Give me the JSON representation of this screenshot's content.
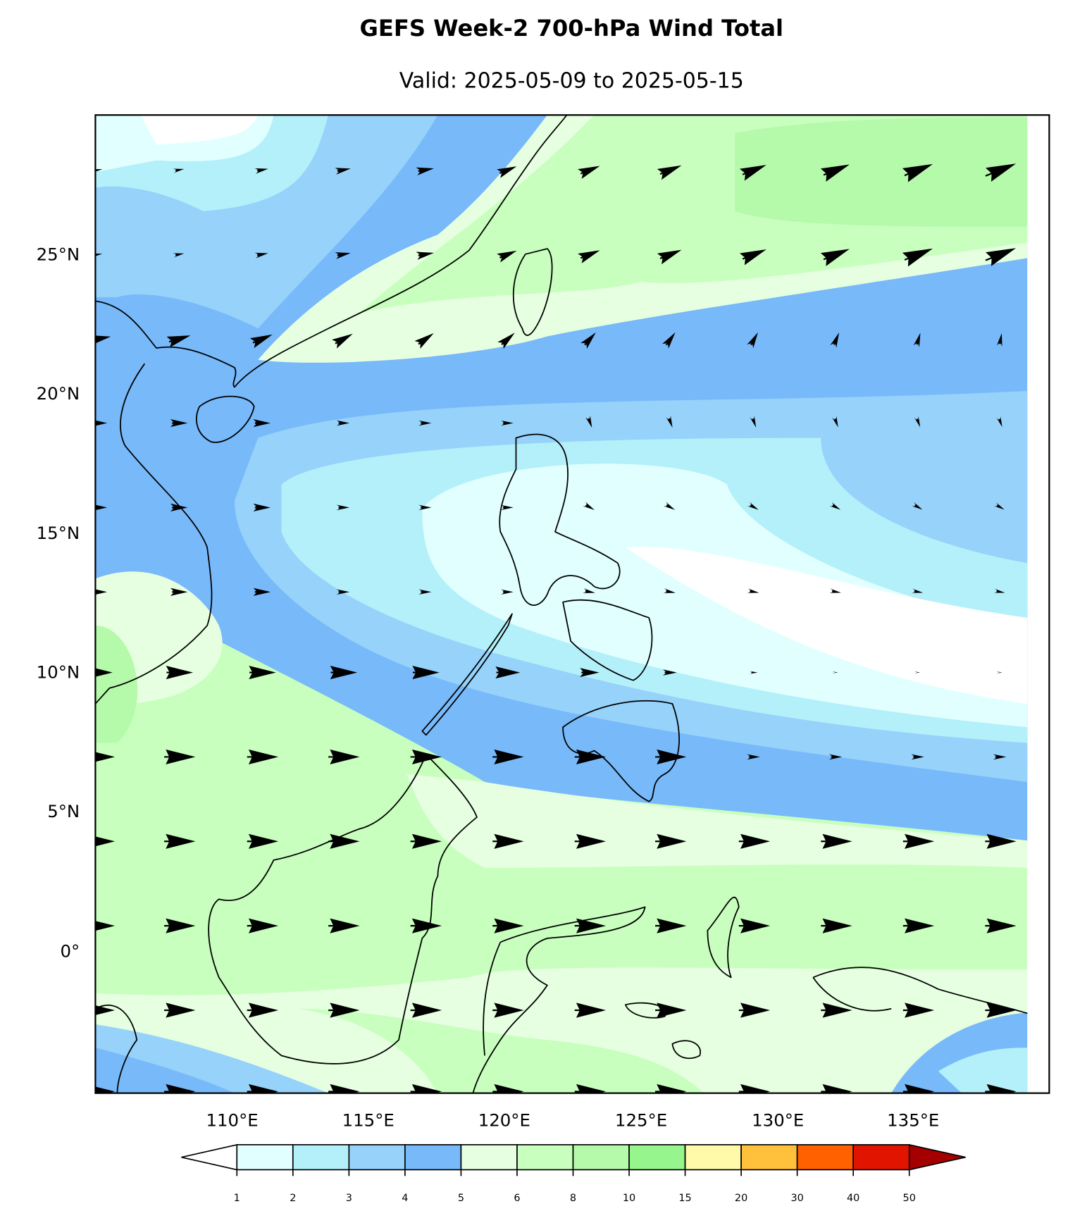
{
  "header": {
    "title": "GEFS Week-2 700-hPa Wind Total",
    "subtitle": "Valid: 2025-05-09 to 2025-05-15"
  },
  "map": {
    "lat_labels": [
      "25°N",
      "20°N",
      "15°N",
      "10°N",
      "5°N",
      "0°"
    ],
    "lon_labels": [
      "110°E",
      "115°E",
      "120°E",
      "125°E",
      "130°E",
      "135°E"
    ]
  },
  "colorbar": {
    "levels": [
      1,
      2,
      3,
      4,
      5,
      6,
      8,
      10,
      15,
      20,
      30,
      40,
      50
    ],
    "colors": [
      "#e1ffff",
      "#b4f0fa",
      "#96d2fa",
      "#78b9fa",
      "#e6ffe1",
      "#c8ffbe",
      "#b4faaa",
      "#96f58c",
      "#fffaaa",
      "#ffc03c",
      "#ff6000",
      "#e11400"
    ],
    "under_color": "#ffffff",
    "over_color": "#a50000"
  }
}
